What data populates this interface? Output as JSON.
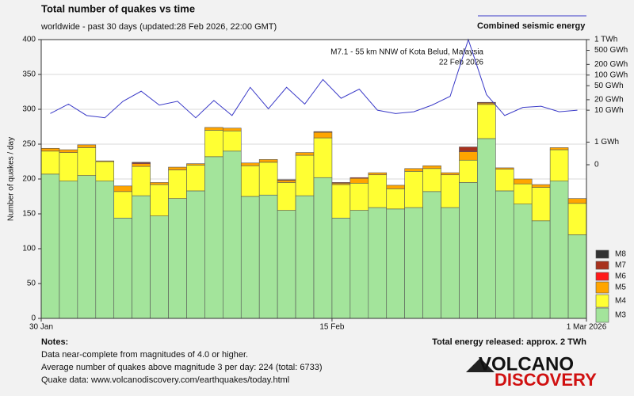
{
  "chart_data": {
    "type": "stacked-bar",
    "title": "Total number of quakes vs time",
    "subtitle": "worldwide - past 30 days (updated:28 Feb 2026, 22:00 GMT)",
    "ylabel": "Number of quakes / day",
    "ylim": [
      0,
      400
    ],
    "yticks": [
      0,
      50,
      100,
      150,
      200,
      250,
      300,
      350,
      400
    ],
    "grid": true,
    "xlim": [
      0,
      30
    ],
    "xticks": [
      {
        "value": 0,
        "label": "30 Jan"
      },
      {
        "value": 16,
        "label": "15 Feb"
      },
      {
        "value": 30,
        "label": "1 Mar 2026"
      }
    ],
    "series": [
      {
        "name": "M3",
        "color": "#a3e49b",
        "values": [
          207,
          197,
          205,
          197,
          144,
          176,
          147,
          172,
          183,
          232,
          240,
          175,
          177,
          155,
          176,
          202,
          144,
          155,
          159,
          157,
          159,
          182,
          159,
          195,
          258,
          183,
          164,
          140,
          197,
          120
        ]
      },
      {
        "name": "M4",
        "color": "#ffff33",
        "values": [
          33,
          41,
          40,
          28,
          38,
          42,
          45,
          41,
          37,
          38,
          29,
          44,
          47,
          40,
          58,
          57,
          48,
          39,
          47,
          29,
          52,
          33,
          47,
          32,
          49,
          31,
          29,
          48,
          45,
          45
        ]
      },
      {
        "name": "M5",
        "color": "#ffa500",
        "values": [
          4,
          4,
          4,
          1,
          8,
          4,
          3,
          4,
          2,
          4,
          4,
          4,
          4,
          3,
          4,
          8,
          2,
          7,
          3,
          5,
          4,
          4,
          3,
          12,
          2,
          2,
          7,
          4,
          3,
          7
        ]
      },
      {
        "name": "M6",
        "color": "#ff1a1a",
        "values": [
          0,
          0,
          0,
          0,
          0,
          1,
          0,
          0,
          0,
          0,
          0,
          0,
          0,
          0,
          0,
          0,
          0,
          1,
          0,
          0,
          0,
          0,
          0,
          1,
          0,
          0,
          0,
          0,
          0,
          0
        ]
      },
      {
        "name": "M7",
        "color": "#a8321e",
        "values": [
          0,
          0,
          0,
          0,
          0,
          1,
          0,
          0,
          0,
          0,
          0,
          0,
          0,
          1,
          0,
          1,
          1,
          0,
          0,
          0,
          0,
          0,
          0,
          6,
          1,
          0,
          0,
          0,
          0,
          0
        ]
      },
      {
        "name": "M8",
        "color": "#333333",
        "values": [
          0,
          0,
          0,
          0,
          0,
          0,
          0,
          0,
          0,
          0,
          0,
          0,
          0,
          0,
          0,
          0,
          0,
          0,
          0,
          0,
          0,
          0,
          0,
          0,
          0,
          0,
          0,
          0,
          0,
          0
        ]
      }
    ],
    "energy": {
      "name": "Combined seismic energy",
      "color": "#3b3bc8",
      "axis": "y2",
      "values": [
        8,
        15,
        7,
        6,
        18,
        35,
        14,
        18,
        6,
        19,
        7,
        45,
        11,
        45,
        15,
        75,
        22,
        40,
        10,
        8,
        9,
        14,
        25,
        1000,
        28,
        7,
        12,
        13,
        9,
        10
      ]
    },
    "y2lim": [
      0,
      1000
    ],
    "y2ticks": [
      {
        "value": 1000,
        "label": "1 TWh"
      },
      {
        "value": 500,
        "label": "500 GWh"
      },
      {
        "value": 200,
        "label": "200 GWh"
      },
      {
        "value": 100,
        "label": "100 GWh"
      },
      {
        "value": 50,
        "label": "50 GWh"
      },
      {
        "value": 20,
        "label": "20 GWh"
      },
      {
        "value": 10,
        "label": "10 GWh"
      },
      {
        "value": 1,
        "label": "1 GWh"
      },
      0
    ],
    "annotation": [
      "M7.1 - 55 km NNW of Kota Belud, Malaysia",
      "22 Feb 2026"
    ],
    "total_energy": "Total energy released: approx. 2 TWh",
    "notes_title": "Notes:",
    "notes": [
      "Data near-complete from magnitudes of 4.0 or higher.",
      "Average number of quakes above magnitude 3 per day: 224 (total: 6733)",
      "Quake data: www.volcanodiscovery.com/earthquakes/today.html"
    ],
    "logo": [
      "VOLCANO",
      "DISCOVERY"
    ]
  }
}
